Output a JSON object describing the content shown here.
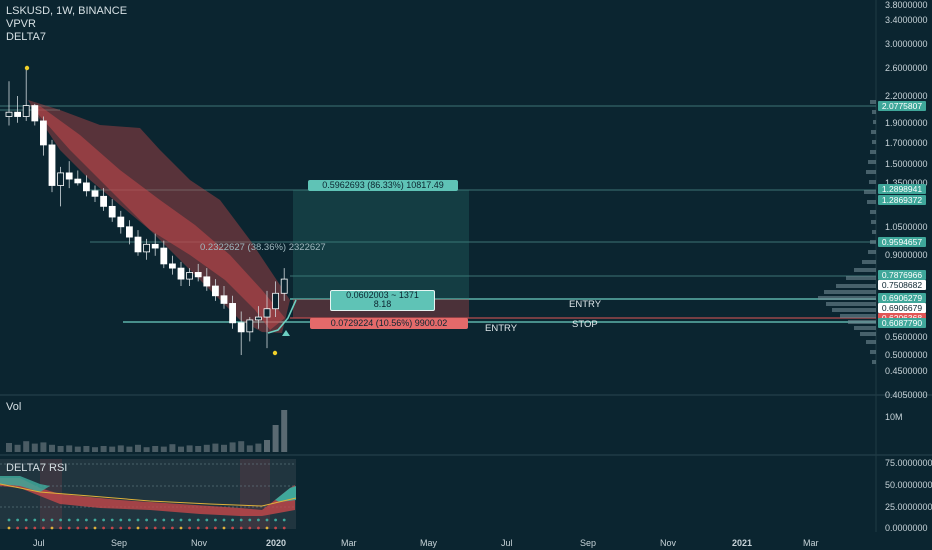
{
  "legend": {
    "symbol_line": "LSKUSD, 1W, BINANCE",
    "indicator_1": "VPVR",
    "indicator_2": "DELTA7"
  },
  "panes": {
    "volume_title": "Vol",
    "volume_axis_label": "10M",
    "rsi_title": "DELTA7 RSI"
  },
  "price_axis": [
    "3.8000000",
    "3.4000000",
    "3.0000000",
    "2.6000000",
    "2.2000000",
    "1.9000000",
    "1.7000000",
    "1.5000000",
    "1.3500000",
    "1.0500000",
    "0.9000000",
    "0.5600000",
    "0.5000000",
    "0.4500000",
    "0.4050000"
  ],
  "rsi_axis": [
    "75.0000000",
    "50.0000000",
    "25.0000000",
    "0.0000000"
  ],
  "price_tags": [
    {
      "value": "2.0775807",
      "color": "#3fa79a"
    },
    {
      "value": "1.2898941",
      "color": "#3fa79a"
    },
    {
      "value": "1.2869372",
      "color": "#3fa79a"
    },
    {
      "value": "0.9594657",
      "color": "#3fa79a"
    },
    {
      "value": "0.7876966",
      "color": "#3fa79a"
    },
    {
      "value": "0.7508682",
      "color": "#ffffff"
    },
    {
      "value": "0.6906279",
      "color": "#3fa79a"
    },
    {
      "value": "0.6906679",
      "color": "#ffffff"
    },
    {
      "value": "0.6206368",
      "color": "#e05656"
    },
    {
      "value": "0.6087790",
      "color": "#3fa79a"
    }
  ],
  "time_axis": [
    "Jul",
    "Sep",
    "Nov",
    "2020",
    "Mar",
    "May",
    "Jul",
    "Sep",
    "Nov",
    "2021",
    "Mar"
  ],
  "annotations": {
    "target_box": "0.5962693 (86.33%) 10817.49",
    "measure_text": "0.2322627 (38.36%) 2322627",
    "entry_box_line1": "0.0602003 ~ 1371",
    "entry_box_line2": "8.18",
    "stop_box": "0.0729224 (10.56%) 9900.02",
    "entry_label_1": "ENTRY",
    "entry_label_2": "ENTRY",
    "stop_label": "STOP"
  },
  "colors": {
    "background": "#0b2530",
    "up_candle": "#ffffff",
    "down_candle": "#ffffff",
    "cloud": "#c4474a",
    "teal": "#3fa79a",
    "stop_red": "#e05656"
  },
  "candles": [
    {
      "o": 1.95,
      "h": 2.4,
      "l": 1.85,
      "c": 2.0
    },
    {
      "o": 2.0,
      "h": 2.2,
      "l": 1.88,
      "c": 1.95
    },
    {
      "o": 1.95,
      "h": 2.6,
      "l": 1.9,
      "c": 2.08
    },
    {
      "o": 2.08,
      "h": 2.1,
      "l": 1.85,
      "c": 1.9
    },
    {
      "o": 1.9,
      "h": 1.95,
      "l": 1.55,
      "c": 1.65
    },
    {
      "o": 1.65,
      "h": 1.7,
      "l": 1.25,
      "c": 1.3
    },
    {
      "o": 1.3,
      "h": 1.45,
      "l": 1.15,
      "c": 1.4
    },
    {
      "o": 1.4,
      "h": 1.5,
      "l": 1.28,
      "c": 1.35
    },
    {
      "o": 1.35,
      "h": 1.42,
      "l": 1.3,
      "c": 1.32
    },
    {
      "o": 1.32,
      "h": 1.38,
      "l": 1.22,
      "c": 1.26
    },
    {
      "o": 1.26,
      "h": 1.3,
      "l": 1.18,
      "c": 1.22
    },
    {
      "o": 1.22,
      "h": 1.28,
      "l": 1.12,
      "c": 1.15
    },
    {
      "o": 1.15,
      "h": 1.2,
      "l": 1.05,
      "c": 1.08
    },
    {
      "o": 1.08,
      "h": 1.12,
      "l": 0.98,
      "c": 1.02
    },
    {
      "o": 1.02,
      "h": 1.06,
      "l": 0.92,
      "c": 0.96
    },
    {
      "o": 0.96,
      "h": 1.0,
      "l": 0.86,
      "c": 0.88
    },
    {
      "o": 0.88,
      "h": 0.95,
      "l": 0.84,
      "c": 0.92
    },
    {
      "o": 0.92,
      "h": 0.98,
      "l": 0.86,
      "c": 0.9
    },
    {
      "o": 0.9,
      "h": 0.94,
      "l": 0.8,
      "c": 0.82
    },
    {
      "o": 0.82,
      "h": 0.86,
      "l": 0.77,
      "c": 0.8
    },
    {
      "o": 0.8,
      "h": 0.83,
      "l": 0.72,
      "c": 0.75
    },
    {
      "o": 0.75,
      "h": 0.8,
      "l": 0.72,
      "c": 0.78
    },
    {
      "o": 0.78,
      "h": 0.82,
      "l": 0.74,
      "c": 0.76
    },
    {
      "o": 0.76,
      "h": 0.8,
      "l": 0.7,
      "c": 0.72
    },
    {
      "o": 0.72,
      "h": 0.75,
      "l": 0.66,
      "c": 0.68
    },
    {
      "o": 0.68,
      "h": 0.72,
      "l": 0.63,
      "c": 0.65
    },
    {
      "o": 0.65,
      "h": 0.68,
      "l": 0.56,
      "c": 0.58
    },
    {
      "o": 0.58,
      "h": 0.62,
      "l": 0.48,
      "c": 0.55
    },
    {
      "o": 0.55,
      "h": 0.6,
      "l": 0.52,
      "c": 0.59
    },
    {
      "o": 0.59,
      "h": 0.64,
      "l": 0.56,
      "c": 0.6
    },
    {
      "o": 0.6,
      "h": 0.7,
      "l": 0.5,
      "c": 0.63
    },
    {
      "o": 0.63,
      "h": 0.74,
      "l": 0.6,
      "c": 0.69
    },
    {
      "o": 0.69,
      "h": 0.8,
      "l": 0.66,
      "c": 0.75
    }
  ],
  "volume": [
    1.5,
    1.2,
    1.8,
    1.4,
    1.6,
    1.2,
    1.0,
    1.1,
    0.9,
    1.0,
    0.8,
    1.0,
    0.9,
    1.1,
    0.9,
    1.2,
    0.8,
    1.0,
    0.9,
    1.3,
    0.9,
    1.1,
    1.0,
    1.2,
    1.4,
    1.2,
    1.6,
    1.8,
    1.1,
    1.4,
    2.0,
    4.5,
    7.0
  ]
}
